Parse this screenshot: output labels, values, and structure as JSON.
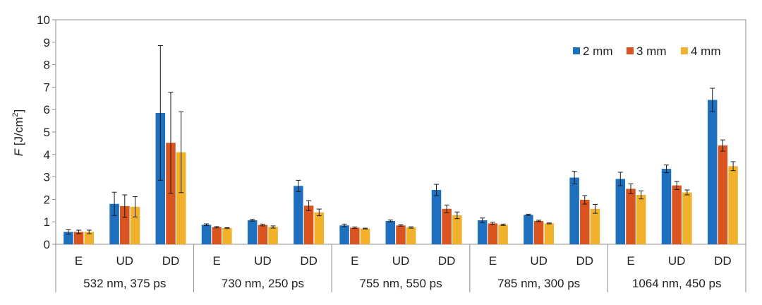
{
  "chart_data": {
    "type": "bar",
    "ylabel_var": "F",
    "ylabel_unit": " [J/cm",
    "ylabel_sup": "2",
    "ylabel_close": "]",
    "ylim": [
      0,
      10
    ],
    "yticks": [
      "0",
      "1",
      "2",
      "3",
      "4",
      "5",
      "6",
      "7",
      "8",
      "9",
      "10"
    ],
    "grid": false,
    "legend_position": "top-right",
    "groups": [
      {
        "label": "532 nm, 375 ps",
        "categories": [
          "E",
          "UD",
          "DD"
        ]
      },
      {
        "label": "730 nm, 250 ps",
        "categories": [
          "E",
          "UD",
          "DD"
        ]
      },
      {
        "label": "755 nm, 550 ps",
        "categories": [
          "E",
          "UD",
          "DD"
        ]
      },
      {
        "label": "785 nm, 300 ps",
        "categories": [
          "E",
          "UD",
          "DD"
        ]
      },
      {
        "label": "1064 nm, 450 ps",
        "categories": [
          "E",
          "UD",
          "DD"
        ]
      }
    ],
    "series": [
      {
        "name": "2 mm",
        "color": "#1f6fbf",
        "values": [
          0.55,
          1.8,
          5.85,
          0.87,
          1.07,
          2.6,
          0.84,
          1.04,
          2.42,
          1.07,
          1.31,
          2.97,
          2.91,
          3.36,
          6.43
        ],
        "errors": [
          0.1,
          0.52,
          3.0,
          0.04,
          0.04,
          0.25,
          0.06,
          0.04,
          0.25,
          0.1,
          0.03,
          0.28,
          0.3,
          0.17,
          0.52
        ]
      },
      {
        "name": "3 mm",
        "color": "#d9541e",
        "values": [
          0.55,
          1.7,
          4.52,
          0.76,
          0.86,
          1.72,
          0.74,
          0.84,
          1.58,
          0.93,
          1.04,
          1.98,
          2.47,
          2.62,
          4.4
        ],
        "errors": [
          0.08,
          0.5,
          2.25,
          0.03,
          0.04,
          0.22,
          0.03,
          0.03,
          0.17,
          0.05,
          0.03,
          0.19,
          0.22,
          0.18,
          0.25
        ]
      },
      {
        "name": "4 mm",
        "color": "#f2b12a",
        "values": [
          0.55,
          1.67,
          4.1,
          0.72,
          0.77,
          1.42,
          0.7,
          0.75,
          1.29,
          0.87,
          0.93,
          1.58,
          2.2,
          2.31,
          3.48
        ],
        "errors": [
          0.08,
          0.45,
          1.8,
          0.02,
          0.05,
          0.15,
          0.02,
          0.03,
          0.15,
          0.03,
          0.02,
          0.2,
          0.18,
          0.11,
          0.2
        ]
      }
    ]
  }
}
